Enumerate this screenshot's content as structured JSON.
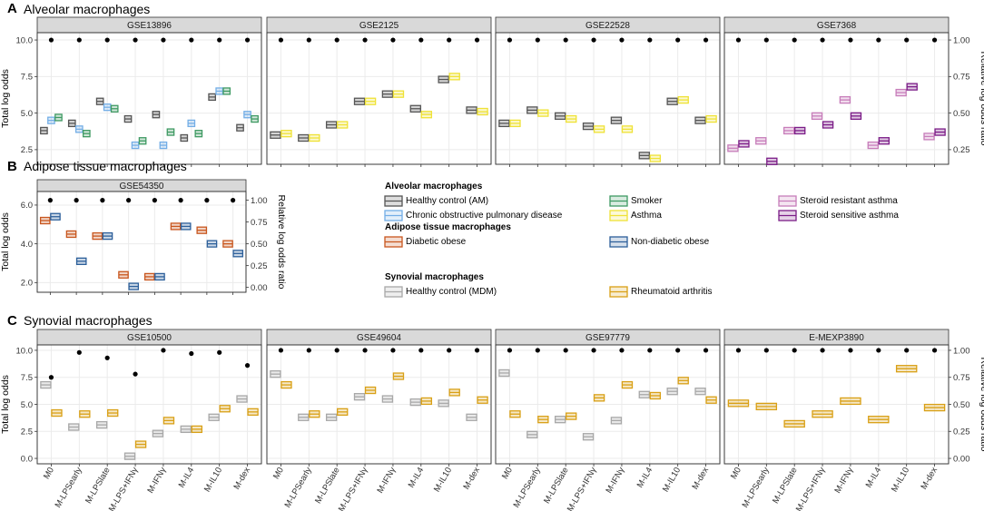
{
  "colors": {
    "am_healthy": "#555555",
    "copd": "#74aee6",
    "smoker": "#3f9a63",
    "asthma": "#efe236",
    "sra": "#c77dba",
    "ssa": "#7b1c87",
    "diabetic_obese": "#c8561e",
    "nondiabetic_obese": "#2c5f9a",
    "mdm": "#a8a8a8",
    "ra": "#d9a016"
  },
  "legend": {
    "groups": [
      {
        "title": "Alveolar macrophages",
        "items": [
          {
            "label": "Healthy control (AM)",
            "color_key": "am_healthy"
          },
          {
            "label": "Smoker",
            "color_key": "smoker"
          },
          {
            "label": "Steroid resistant asthma",
            "color_key": "sra"
          },
          {
            "label": "Chronic obstructive pulmonary disease",
            "color_key": "copd"
          },
          {
            "label": "Asthma",
            "color_key": "asthma"
          },
          {
            "label": "Steroid sensitive asthma",
            "color_key": "ssa"
          }
        ]
      },
      {
        "title": "Adipose tissue macrophages",
        "items": [
          {
            "label": "Diabetic obese",
            "color_key": "diabetic_obese"
          },
          {
            "label": "Non-diabetic obese",
            "color_key": "nondiabetic_obese"
          }
        ]
      },
      {
        "title": "Synovial macrophages",
        "items": [
          {
            "label": "Healthy control  (MDM)",
            "color_key": "mdm"
          },
          {
            "label": "Rheumatoid arthritis",
            "color_key": "ra"
          }
        ]
      }
    ]
  },
  "chart_data": [
    {
      "id": "A",
      "type": "boxplot",
      "title": "Alveolar macrophages",
      "ylabel": "Total log odds",
      "y2label": "Relative log odds ratio",
      "ylim": [
        1.5,
        10.5
      ],
      "yticks": [
        2.5,
        5.0,
        7.5,
        10.0
      ],
      "yticklabels": [
        "2.5",
        "5.0",
        "7.5",
        "10.0"
      ],
      "y2ticks": [
        0.25,
        0.5,
        0.75,
        1.0
      ],
      "y2ticklabels": [
        "0.25",
        "0.50",
        "0.75",
        "1.00"
      ],
      "y2_min_total": 0,
      "y2_max_total": 10,
      "show_x_labels": false,
      "categories": [
        "M0",
        "M-LPSearly",
        "M-LPSlate",
        "M-LPS+IFNγ",
        "M-IFNγ",
        "M-IL4",
        "M-IL10",
        "M-dex"
      ],
      "facets": [
        {
          "name": "GSE13896",
          "series": [
            "am_healthy",
            "copd",
            "smoker"
          ],
          "values": [
            [
              3.8,
              4.5,
              4.7
            ],
            [
              4.3,
              3.9,
              3.6
            ],
            [
              5.8,
              5.4,
              5.3
            ],
            [
              4.6,
              2.8,
              3.1
            ],
            [
              4.9,
              2.8,
              3.7
            ],
            [
              3.3,
              4.3,
              3.6
            ],
            [
              6.1,
              6.5,
              6.5
            ],
            [
              4.0,
              4.9,
              4.6
            ]
          ],
          "ratio_dots": [
            1.0,
            1.0,
            1.0,
            1.0,
            1.0,
            1.0,
            1.0,
            1.0
          ]
        },
        {
          "name": "GSE2125",
          "series": [
            "am_healthy",
            "asthma"
          ],
          "values": [
            [
              3.5,
              3.6
            ],
            [
              3.3,
              3.3
            ],
            [
              4.2,
              4.2
            ],
            [
              5.8,
              5.8
            ],
            [
              6.3,
              6.3
            ],
            [
              5.3,
              4.9
            ],
            [
              7.3,
              7.5
            ],
            [
              5.2,
              5.1
            ]
          ],
          "ratio_dots": [
            1.0,
            1.0,
            1.0,
            1.0,
            1.0,
            1.0,
            1.0,
            1.0
          ]
        },
        {
          "name": "GSE22528",
          "series": [
            "am_healthy",
            "asthma"
          ],
          "values": [
            [
              4.3,
              4.3
            ],
            [
              5.2,
              5.0
            ],
            [
              4.8,
              4.6
            ],
            [
              4.1,
              3.9
            ],
            [
              4.5,
              3.9
            ],
            [
              2.1,
              1.9
            ],
            [
              5.8,
              5.9
            ],
            [
              4.5,
              4.6
            ]
          ],
          "ratio_dots": [
            1.0,
            1.0,
            1.0,
            1.0,
            1.0,
            1.0,
            1.0,
            1.0
          ]
        },
        {
          "name": "GSE7368",
          "series": [
            "sra",
            "ssa"
          ],
          "values": [
            [
              2.6,
              2.9
            ],
            [
              3.1,
              1.7
            ],
            [
              3.8,
              3.8
            ],
            [
              4.8,
              4.2
            ],
            [
              5.9,
              4.8
            ],
            [
              2.8,
              3.1
            ],
            [
              6.4,
              6.8
            ],
            [
              3.4,
              3.7
            ]
          ],
          "ratio_dots": [
            1.0,
            1.0,
            1.0,
            1.0,
            1.0,
            1.0,
            1.0,
            1.0
          ]
        }
      ]
    },
    {
      "id": "B",
      "type": "boxplot",
      "title": "Adipose tissue macrophages",
      "ylabel": "Total log odds",
      "y2label": "Relative log odds ratio",
      "ylim": [
        1.5,
        6.7
      ],
      "yticks": [
        2.0,
        4.0,
        6.0
      ],
      "yticklabels": [
        "2.0",
        "4.0",
        "6.0"
      ],
      "y2ticks": [
        0.0,
        0.25,
        0.5,
        0.75,
        1.0
      ],
      "y2ticklabels": [
        "0.00",
        "0.25",
        "0.50",
        "0.75",
        "1.00"
      ],
      "y2_min_total": 1.75,
      "y2_max_total": 6.25,
      "show_x_labels": false,
      "categories": [
        "M0",
        "M-LPSearly",
        "M-LPSlate",
        "M-LPS+IFNγ",
        "M-IFNγ",
        "M-IL4",
        "M-IL10",
        "M-dex"
      ],
      "facets": [
        {
          "name": "GSE54350",
          "series": [
            "diabetic_obese",
            "nondiabetic_obese"
          ],
          "values": [
            [
              5.2,
              5.4
            ],
            [
              4.5,
              3.1
            ],
            [
              4.4,
              4.4
            ],
            [
              2.4,
              1.8
            ],
            [
              2.3,
              2.3
            ],
            [
              4.9,
              4.9
            ],
            [
              4.7,
              4.0
            ],
            [
              4.0,
              3.5
            ]
          ],
          "ratio_dots": [
            1.0,
            1.0,
            1.0,
            1.0,
            1.0,
            1.0,
            1.0,
            1.0
          ]
        }
      ]
    },
    {
      "id": "C",
      "type": "boxplot",
      "title": "Synovial macrophages",
      "ylabel": "Total log odds",
      "y2label": "Relative log odds ratio",
      "ylim": [
        -0.5,
        10.5
      ],
      "yticks": [
        0.0,
        2.5,
        5.0,
        7.5,
        10.0
      ],
      "yticklabels": [
        "0.0",
        "2.5",
        "5.0",
        "7.5",
        "10.0"
      ],
      "y2ticks": [
        0.0,
        0.25,
        0.5,
        0.75,
        1.0
      ],
      "y2ticklabels": [
        "0.00",
        "0.25",
        "0.50",
        "0.75",
        "1.00"
      ],
      "y2_min_total": 0,
      "y2_max_total": 10,
      "show_x_labels": true,
      "categories": [
        "M0",
        "M-LPSearly",
        "M-LPSlate",
        "M-LPS+IFNγ",
        "M-IFNγ",
        "M-IL4",
        "M-IL10",
        "M-dex"
      ],
      "facets": [
        {
          "name": "GSE10500",
          "series": [
            "mdm",
            "ra"
          ],
          "values": [
            [
              6.8,
              4.2
            ],
            [
              2.9,
              4.1
            ],
            [
              3.1,
              4.2
            ],
            [
              0.2,
              1.3
            ],
            [
              2.3,
              3.5
            ],
            [
              2.7,
              2.7
            ],
            [
              3.8,
              4.6
            ],
            [
              5.5,
              4.3
            ]
          ],
          "ratio_dots": [
            0.75,
            0.98,
            0.93,
            0.78,
            1.0,
            0.97,
            0.98,
            0.86
          ]
        },
        {
          "name": "GSE49604",
          "series": [
            "mdm",
            "ra"
          ],
          "values": [
            [
              7.8,
              6.8
            ],
            [
              3.8,
              4.1
            ],
            [
              3.8,
              4.3
            ],
            [
              5.7,
              6.3
            ],
            [
              5.5,
              7.6
            ],
            [
              5.2,
              5.3
            ],
            [
              5.1,
              6.1
            ],
            [
              3.8,
              5.4
            ]
          ],
          "ratio_dots": [
            1.0,
            1.0,
            1.0,
            1.0,
            1.0,
            1.0,
            1.0,
            1.0
          ]
        },
        {
          "name": "GSE97779",
          "series": [
            "mdm",
            "ra"
          ],
          "values": [
            [
              7.9,
              4.1
            ],
            [
              2.2,
              3.6
            ],
            [
              3.6,
              3.9
            ],
            [
              2.0,
              5.6
            ],
            [
              3.5,
              6.8
            ],
            [
              5.9,
              5.8
            ],
            [
              6.2,
              7.2
            ],
            [
              6.2,
              5.4
            ]
          ],
          "ratio_dots": [
            1.0,
            1.0,
            1.0,
            1.0,
            1.0,
            1.0,
            1.0,
            1.0
          ]
        },
        {
          "name": "E-MEXP3890",
          "series": [
            "ra"
          ],
          "values": [
            [
              5.1
            ],
            [
              4.8
            ],
            [
              3.2
            ],
            [
              4.1
            ],
            [
              5.3
            ],
            [
              3.6
            ],
            [
              8.3
            ],
            [
              4.7
            ]
          ],
          "ratio_dots": [
            1.0,
            1.0,
            1.0,
            1.0,
            1.0,
            1.0,
            1.0,
            1.0
          ]
        }
      ]
    }
  ]
}
